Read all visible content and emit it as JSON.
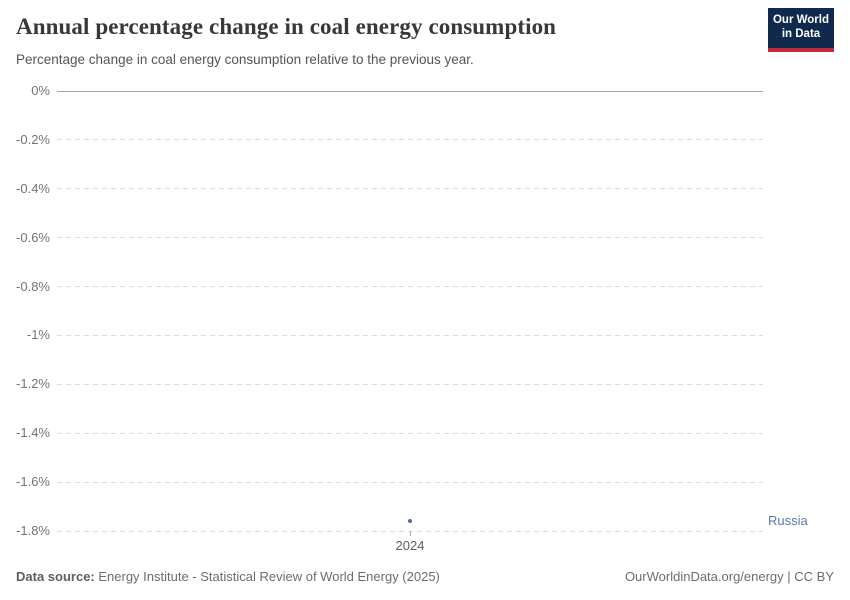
{
  "header": {
    "title": "Annual percentage change in coal energy consumption",
    "subtitle": "Percentage change in coal energy consumption relative to the previous year."
  },
  "logo": {
    "line1": "Our World",
    "line2": "in Data",
    "background_color": "#102a4d",
    "accent_color": "#c0293c"
  },
  "chart_data": {
    "type": "scatter",
    "title": "Annual percentage change in coal energy consumption",
    "subtitle": "Percentage change in coal energy consumption relative to the previous year.",
    "xlabel": "",
    "ylabel": "",
    "x": [
      2024
    ],
    "x_tick_labels": [
      "2024"
    ],
    "series": [
      {
        "name": "Russia",
        "x": [
          2024
        ],
        "values": [
          -1.76
        ]
      }
    ],
    "ylim": [
      0,
      -1.8
    ],
    "y_ticks": [
      0,
      -0.2,
      -0.4,
      -0.6,
      -0.8,
      -1,
      -1.2,
      -1.4,
      -1.6,
      -1.8
    ],
    "y_tick_labels": [
      "0%",
      "-0.2%",
      "-0.4%",
      "-0.6%",
      "-0.8%",
      "-1%",
      "-1.2%",
      "-1.4%",
      "-1.6%",
      "-1.8%"
    ],
    "grid": true,
    "legend_position": "right-edge-label",
    "point_color": "#4c6aa0",
    "entity_label_color": "#577ab1"
  },
  "footer": {
    "source_label": "Data source:",
    "source_text": " Energy Institute - Statistical Review of World Energy (2025)",
    "credit": "OurWorldinData.org/energy | CC BY"
  }
}
